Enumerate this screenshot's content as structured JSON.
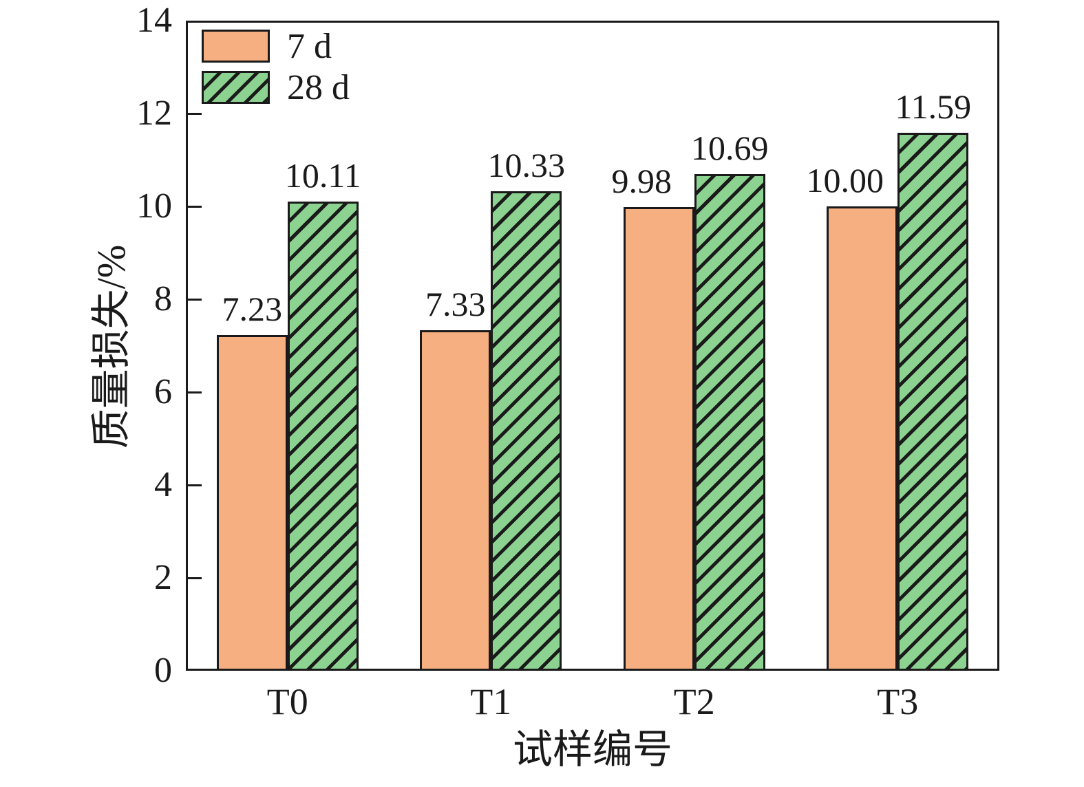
{
  "chart_data": {
    "type": "bar",
    "title": "",
    "categories": [
      "T0",
      "T1",
      "T2",
      "T3"
    ],
    "series": [
      {
        "name": "7 d",
        "values": [
          7.23,
          7.33,
          9.98,
          10.0
        ],
        "value_labels": [
          "7.23",
          "7.33",
          "9.98",
          "10.00"
        ],
        "fill": "#F5AF81",
        "hatch": "none"
      },
      {
        "name": "28 d",
        "values": [
          10.11,
          10.33,
          10.69,
          11.59
        ],
        "value_labels": [
          "10.11",
          "10.33",
          "10.69",
          "11.59"
        ],
        "fill": "#8CD290",
        "hatch": "diagonal-forward"
      }
    ],
    "xlabel": "试样编号",
    "ylabel": "质量损失/%",
    "ylim": [
      0,
      14
    ],
    "yticks": [
      "0",
      "2",
      "4",
      "6",
      "8",
      "10",
      "12",
      "14"
    ],
    "grid": false,
    "legend_position": "top-left",
    "colors": {
      "axis": "#1a1a1a",
      "bar_edge": "#1a1a1a",
      "hatch_line": "#1a1a1a",
      "series_7d": "#F5AF81",
      "series_28d": "#8CD290"
    }
  }
}
